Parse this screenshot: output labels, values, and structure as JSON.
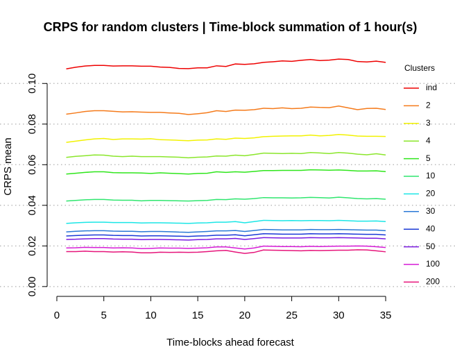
{
  "chart_data": {
    "type": "line",
    "title": "CRPS for random clusters | Time-block summation of 1 hour(s)",
    "x_label": "Time-blocks ahead forecast",
    "y_label": "CRPS mean",
    "legend_title": "Clusters",
    "grid": true,
    "xlim": [
      -1.4,
      36.4
    ],
    "ylim": [
      -0.0045,
      0.1165
    ],
    "xticks": [
      0,
      5,
      10,
      15,
      20,
      25,
      30,
      35
    ],
    "yticks": [
      {
        "value": 0,
        "label": "0.00"
      },
      {
        "value": 0.02,
        "label": "0.02"
      },
      {
        "value": 0.04,
        "label": "0.04"
      },
      {
        "value": 0.06,
        "label": "0.06"
      },
      {
        "value": 0.08,
        "label": "0.08"
      },
      {
        "value": 0.1,
        "label": "0.10"
      }
    ],
    "x": [
      1,
      2,
      3,
      4,
      5,
      6,
      7,
      8,
      9,
      10,
      11,
      12,
      13,
      14,
      15,
      16,
      17,
      18,
      19,
      20,
      21,
      22,
      23,
      24,
      25,
      26,
      27,
      28,
      29,
      30,
      31,
      32,
      33,
      34,
      35
    ],
    "series": [
      {
        "name": "ind",
        "color": "#ee0000",
        "values": [
          0.1072,
          0.108,
          0.1086,
          0.1089,
          0.1089,
          0.1086,
          0.1087,
          0.1087,
          0.1085,
          0.1085,
          0.1081,
          0.1079,
          0.1074,
          0.1073,
          0.1077,
          0.1077,
          0.1087,
          0.1084,
          0.1096,
          0.1094,
          0.1097,
          0.1104,
          0.1107,
          0.1111,
          0.1109,
          0.1114,
          0.1118,
          0.1113,
          0.1115,
          0.112,
          0.1118,
          0.1108,
          0.1106,
          0.111,
          0.1104
        ]
      },
      {
        "name": "2",
        "color": "#f57a1a",
        "values": [
          0.0849,
          0.0855,
          0.0862,
          0.0866,
          0.0866,
          0.0863,
          0.086,
          0.0861,
          0.0859,
          0.0858,
          0.0858,
          0.0855,
          0.0853,
          0.0847,
          0.0851,
          0.0856,
          0.0866,
          0.0862,
          0.0869,
          0.0868,
          0.0871,
          0.0878,
          0.0876,
          0.088,
          0.0876,
          0.0878,
          0.0884,
          0.0882,
          0.0881,
          0.0889,
          0.088,
          0.0871,
          0.0877,
          0.0878,
          0.0872
        ]
      },
      {
        "name": "3",
        "color": "#f2f200",
        "values": [
          0.071,
          0.0716,
          0.0722,
          0.0727,
          0.0729,
          0.0724,
          0.0727,
          0.0727,
          0.0726,
          0.0728,
          0.0723,
          0.0722,
          0.072,
          0.0718,
          0.0721,
          0.0722,
          0.0727,
          0.0725,
          0.0731,
          0.0729,
          0.0732,
          0.0738,
          0.074,
          0.0741,
          0.0742,
          0.0742,
          0.0746,
          0.0742,
          0.0744,
          0.0749,
          0.0746,
          0.0741,
          0.074,
          0.074,
          0.0739
        ]
      },
      {
        "name": "4",
        "color": "#8ae62a",
        "values": [
          0.0636,
          0.0641,
          0.0644,
          0.0648,
          0.0647,
          0.0642,
          0.064,
          0.0642,
          0.064,
          0.064,
          0.064,
          0.0638,
          0.0637,
          0.0634,
          0.0637,
          0.0638,
          0.0643,
          0.0642,
          0.0647,
          0.0644,
          0.065,
          0.0657,
          0.0656,
          0.0655,
          0.0656,
          0.0655,
          0.066,
          0.0658,
          0.0655,
          0.066,
          0.0657,
          0.0652,
          0.0649,
          0.0654,
          0.0648
        ]
      },
      {
        "name": "5",
        "color": "#2ee61a",
        "values": [
          0.0554,
          0.0558,
          0.0562,
          0.0565,
          0.0565,
          0.0561,
          0.056,
          0.056,
          0.0559,
          0.0557,
          0.056,
          0.0558,
          0.0556,
          0.0554,
          0.0557,
          0.0558,
          0.0565,
          0.0562,
          0.0565,
          0.0563,
          0.0567,
          0.0571,
          0.0571,
          0.0572,
          0.0572,
          0.0572,
          0.0575,
          0.0574,
          0.0573,
          0.0574,
          0.0572,
          0.0569,
          0.0569,
          0.057,
          0.0566
        ]
      },
      {
        "name": "10",
        "color": "#2ee66e",
        "values": [
          0.0421,
          0.0424,
          0.0427,
          0.0429,
          0.0429,
          0.0426,
          0.0425,
          0.0425,
          0.0422,
          0.0424,
          0.0424,
          0.0423,
          0.0422,
          0.0421,
          0.0423,
          0.0424,
          0.0429,
          0.0428,
          0.0432,
          0.043,
          0.0433,
          0.0438,
          0.0437,
          0.0437,
          0.0436,
          0.0437,
          0.0439,
          0.0438,
          0.0436,
          0.044,
          0.0437,
          0.0433,
          0.0432,
          0.0433,
          0.043
        ]
      },
      {
        "name": "20",
        "color": "#1ae6e6",
        "values": [
          0.0311,
          0.0314,
          0.0316,
          0.0317,
          0.0317,
          0.0315,
          0.0315,
          0.0315,
          0.0313,
          0.0314,
          0.0314,
          0.0313,
          0.0312,
          0.0311,
          0.0313,
          0.0314,
          0.0317,
          0.0317,
          0.032,
          0.0314,
          0.032,
          0.0326,
          0.0325,
          0.0324,
          0.0325,
          0.0324,
          0.0325,
          0.0325,
          0.0324,
          0.0326,
          0.0324,
          0.0322,
          0.0322,
          0.0323,
          0.032
        ]
      },
      {
        "name": "30",
        "color": "#2a78d6",
        "values": [
          0.0269,
          0.0272,
          0.0274,
          0.0275,
          0.0275,
          0.0273,
          0.0272,
          0.0272,
          0.027,
          0.0271,
          0.0271,
          0.027,
          0.0268,
          0.0267,
          0.0269,
          0.0271,
          0.0274,
          0.0274,
          0.0276,
          0.0271,
          0.0276,
          0.0281,
          0.028,
          0.0279,
          0.0279,
          0.0279,
          0.0281,
          0.028,
          0.028,
          0.0281,
          0.028,
          0.0279,
          0.0278,
          0.0278,
          0.0275
        ]
      },
      {
        "name": "40",
        "color": "#1a38d6",
        "values": [
          0.0249,
          0.0251,
          0.0253,
          0.0254,
          0.0254,
          0.0252,
          0.0251,
          0.0251,
          0.0249,
          0.025,
          0.025,
          0.0249,
          0.0248,
          0.0247,
          0.0249,
          0.025,
          0.0253,
          0.0253,
          0.0255,
          0.025,
          0.0255,
          0.026,
          0.0259,
          0.0258,
          0.0258,
          0.0258,
          0.026,
          0.0259,
          0.0259,
          0.026,
          0.0259,
          0.0258,
          0.0257,
          0.0257,
          0.0254
        ]
      },
      {
        "name": "50",
        "color": "#7a1ae0",
        "values": [
          0.0232,
          0.0233,
          0.0235,
          0.0236,
          0.0236,
          0.0234,
          0.0233,
          0.0233,
          0.0231,
          0.0232,
          0.0232,
          0.0231,
          0.023,
          0.0229,
          0.0231,
          0.0232,
          0.0235,
          0.0235,
          0.0237,
          0.0232,
          0.0236,
          0.0241,
          0.024,
          0.0239,
          0.0239,
          0.0239,
          0.0241,
          0.024,
          0.024,
          0.0241,
          0.024,
          0.0239,
          0.0238,
          0.0238,
          0.0235
        ]
      },
      {
        "name": "100",
        "color": "#d61ad6",
        "values": [
          0.019,
          0.0191,
          0.0193,
          0.0192,
          0.0192,
          0.019,
          0.0191,
          0.019,
          0.0187,
          0.0188,
          0.019,
          0.0189,
          0.0189,
          0.0188,
          0.0189,
          0.0191,
          0.0195,
          0.0195,
          0.019,
          0.0185,
          0.019,
          0.0199,
          0.0198,
          0.0197,
          0.0197,
          0.0196,
          0.0198,
          0.0197,
          0.0198,
          0.0199,
          0.0199,
          0.02,
          0.0199,
          0.0196,
          0.0192
        ]
      },
      {
        "name": "200",
        "color": "#e6147a",
        "values": [
          0.0172,
          0.0172,
          0.0174,
          0.0172,
          0.0172,
          0.017,
          0.0171,
          0.017,
          0.0166,
          0.0166,
          0.0169,
          0.0168,
          0.0169,
          0.0168,
          0.0169,
          0.0172,
          0.0176,
          0.0178,
          0.017,
          0.0163,
          0.0168,
          0.018,
          0.0179,
          0.0178,
          0.0177,
          0.0176,
          0.0178,
          0.0177,
          0.0178,
          0.0179,
          0.0179,
          0.0181,
          0.018,
          0.0176,
          0.0171
        ]
      }
    ]
  }
}
